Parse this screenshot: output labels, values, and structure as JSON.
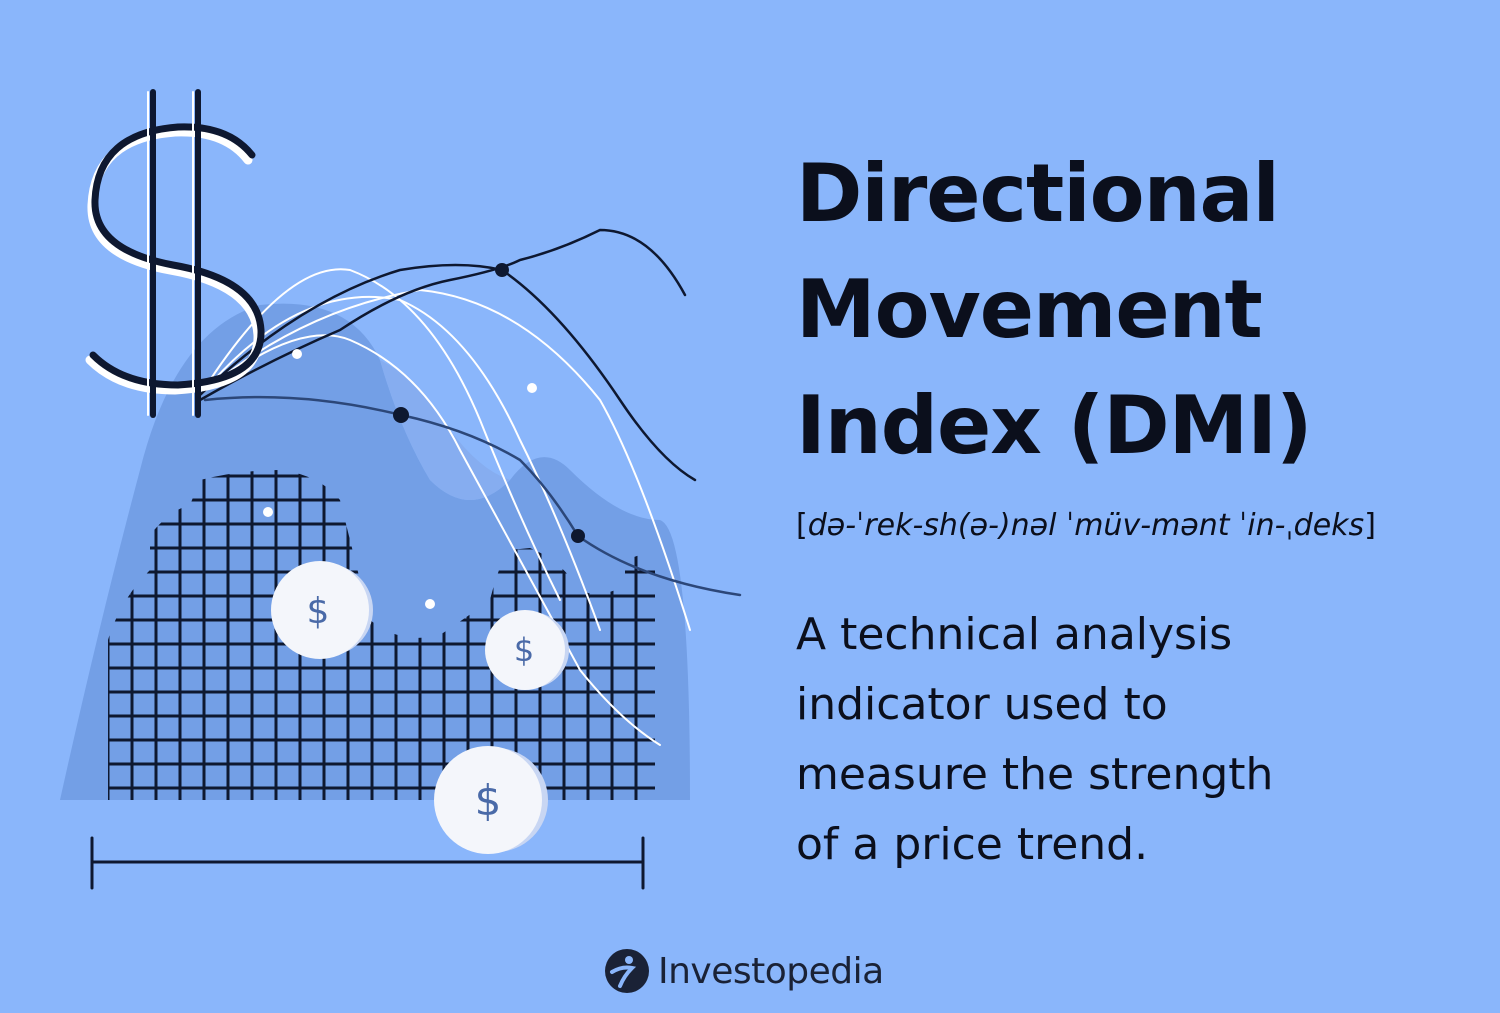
{
  "title": {
    "lines": [
      "Directional",
      "Movement",
      "Index (DMI)"
    ]
  },
  "pronunciation": {
    "open": "[",
    "text": "də-ˈrek-sh(ə-)nəl ˈmüv-mənt ˈin-ˌdeks",
    "close": "]"
  },
  "description": {
    "lines": [
      "A technical analysis",
      "indicator used to",
      "measure the strength",
      "of a price trend."
    ]
  },
  "brand": {
    "name": "Investopedia",
    "icon": "investopedia-logo-icon"
  },
  "illustration": {
    "icons": [
      "dollar-sign-icon",
      "coin-dollar-icon",
      "grid-chart",
      "trend-lines",
      "timeline-bracket"
    ],
    "coin_symbol": "$",
    "colors": {
      "background": "#8ab6fb",
      "mountain": "#739fe6",
      "ink": "#0e1830",
      "coin": "#f4f6fb",
      "coin_text": "#4a6aa8",
      "white_line": "#ffffff"
    }
  }
}
